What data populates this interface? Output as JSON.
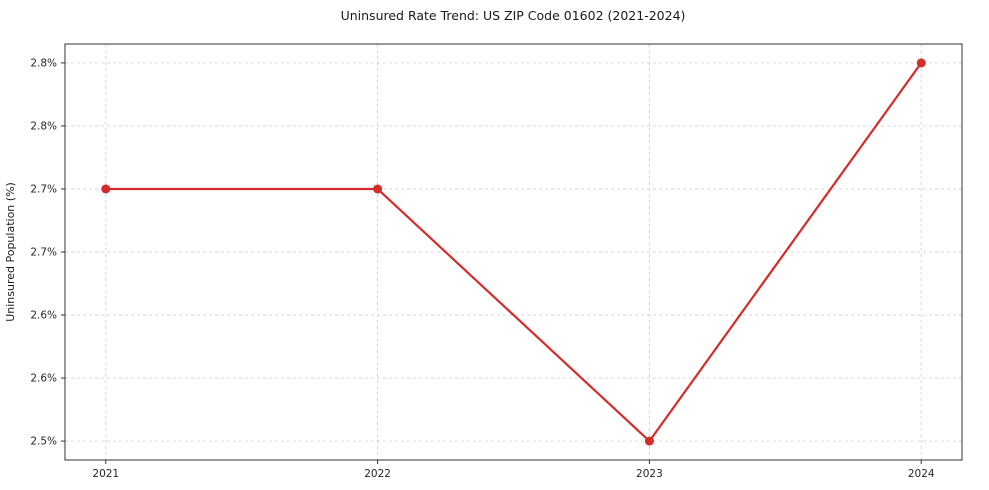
{
  "chart_data": {
    "type": "line",
    "title": "Uninsured Rate Trend: US ZIP Code 01602 (2021-2024)",
    "xlabel": "",
    "ylabel": "Uninsured Population (%)",
    "x": [
      2021,
      2022,
      2023,
      2024
    ],
    "values": [
      2.7,
      2.7,
      2.5,
      2.8
    ],
    "xtick_labels": [
      "2021",
      "2022",
      "2023",
      "2024"
    ],
    "yticks": [
      2.5,
      2.55,
      2.6,
      2.65,
      2.7,
      2.75,
      2.8
    ],
    "ytick_labels": [
      "2.5%",
      "2.6%",
      "2.6%",
      "2.7%",
      "2.7%",
      "2.8%",
      "2.8%"
    ],
    "xlim": [
      2020.85,
      2024.15
    ],
    "ylim": [
      2.485,
      2.815
    ],
    "grid": true,
    "legend_position": "none",
    "line_color": "#d62b2b",
    "marker": "circle",
    "background_color": "#ffffff"
  }
}
